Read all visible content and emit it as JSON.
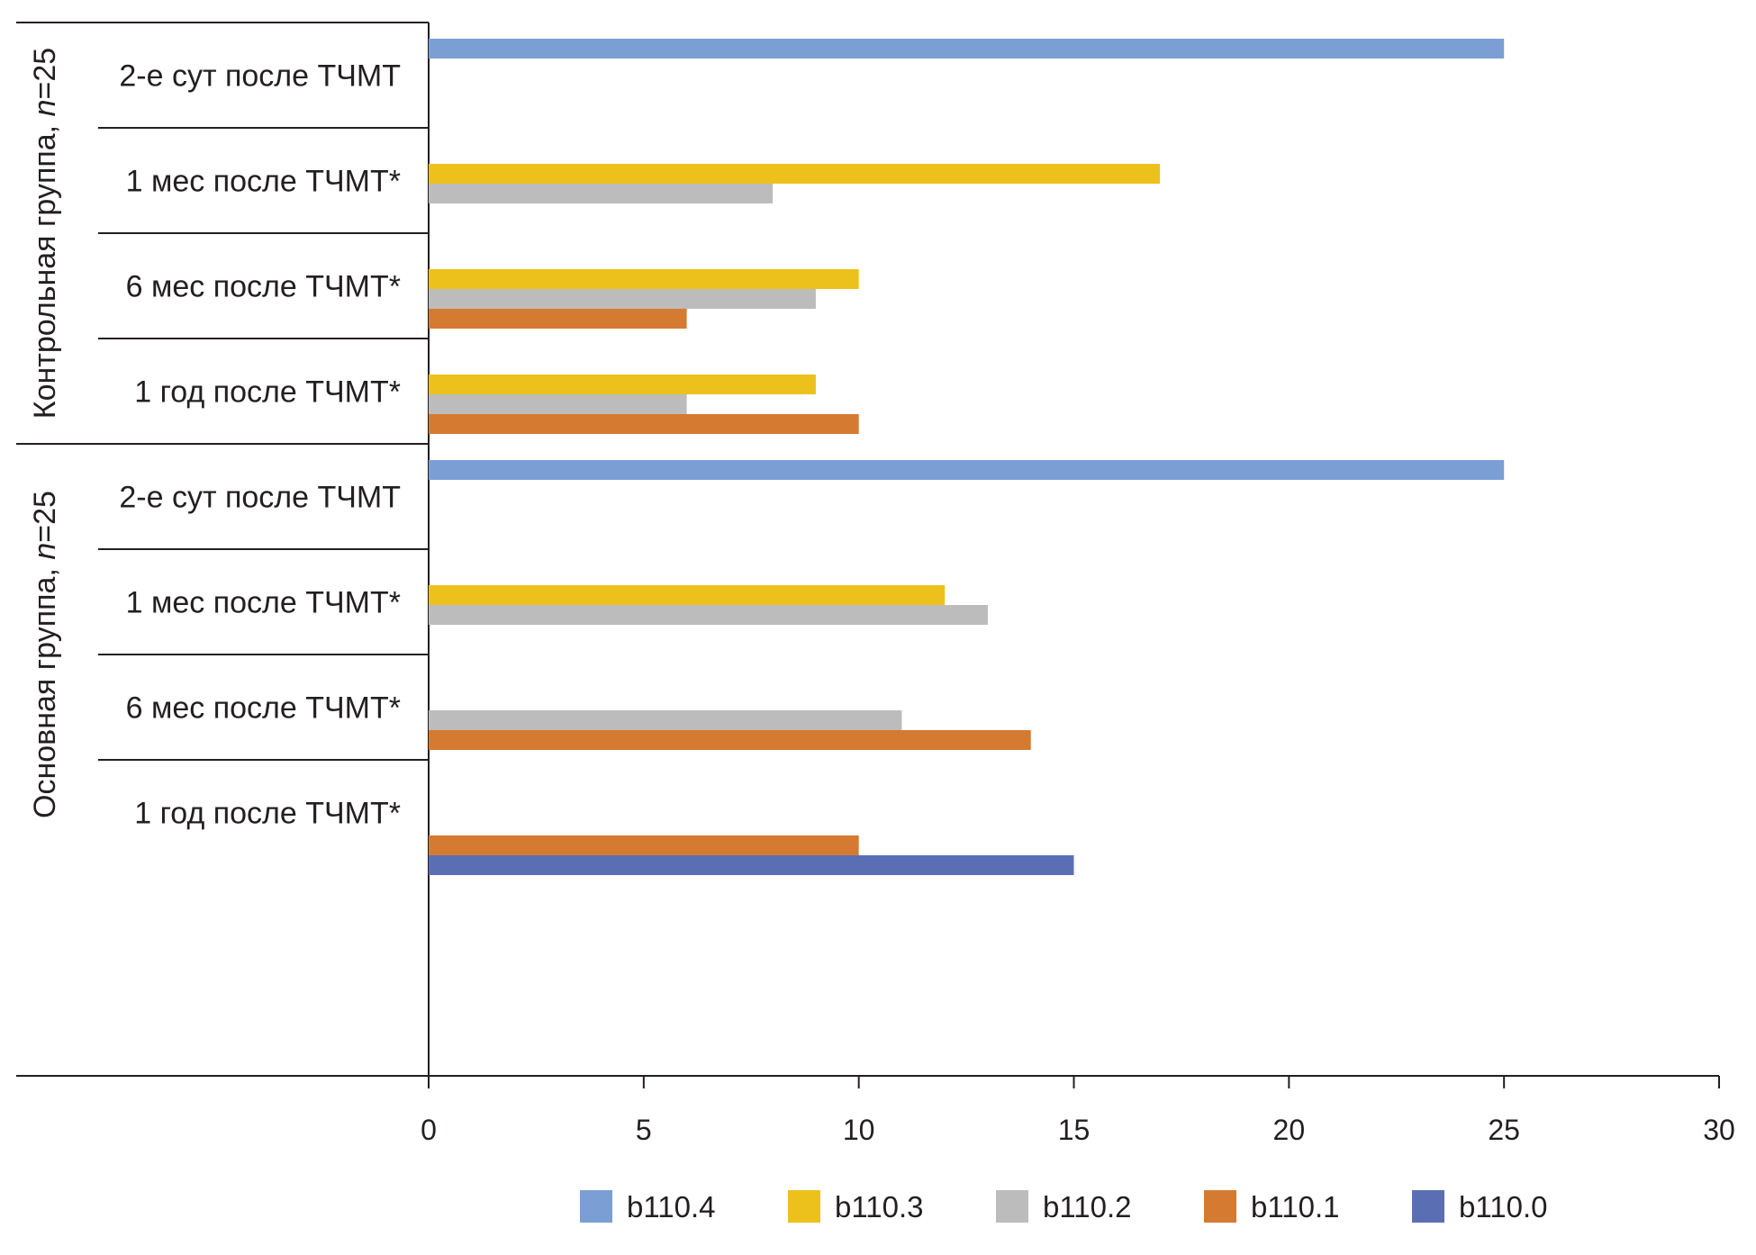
{
  "chart_data": {
    "type": "bar",
    "orientation": "horizontal",
    "xlim": [
      0,
      30
    ],
    "x_ticks": [
      "0",
      "5",
      "10",
      "15",
      "20",
      "25",
      "30"
    ],
    "groups": [
      {
        "label": "Контрольная группа, ",
        "label_italic": "n",
        "label_suffix": "=25",
        "categories": [
          "2-е сут после ТЧМТ",
          "1 мес после ТЧМТ*",
          "6 мес после ТЧМТ*",
          "1 год после ТЧМТ*"
        ]
      },
      {
        "label": "Основная группа, ",
        "label_italic": "n",
        "label_suffix": "=25",
        "categories": [
          "2-е сут после ТЧМТ",
          "1 мес после ТЧМТ*",
          "6 мес после ТЧМТ*",
          "1 год после ТЧМТ*"
        ]
      }
    ],
    "series": [
      {
        "name": "b110.4",
        "color": "#7b9fd4",
        "values": [
          25,
          0,
          0,
          0,
          25,
          0,
          0,
          0
        ]
      },
      {
        "name": "b110.3",
        "color": "#ecc11b",
        "values": [
          0,
          17,
          10,
          9,
          0,
          12,
          0,
          0
        ]
      },
      {
        "name": "b110.2",
        "color": "#bcbcbc",
        "values": [
          0,
          8,
          9,
          6,
          0,
          13,
          11,
          0
        ]
      },
      {
        "name": "b110.1",
        "color": "#d57a31",
        "values": [
          0,
          0,
          6,
          10,
          0,
          0,
          14,
          10
        ]
      },
      {
        "name": "b110.0",
        "color": "#5a6fb3",
        "values": [
          0,
          0,
          0,
          0,
          0,
          0,
          0,
          15
        ]
      }
    ],
    "legend_position": "bottom",
    "grid": false
  }
}
